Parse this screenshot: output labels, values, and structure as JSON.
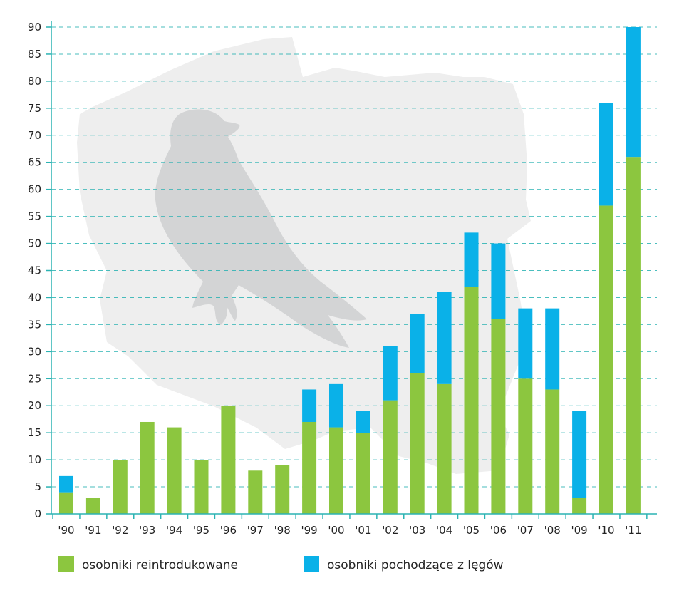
{
  "chart_data": {
    "type": "bar",
    "stacked": true,
    "title": "",
    "xlabel": "",
    "ylabel": "",
    "ylim": [
      0,
      90
    ],
    "yticks": [
      0,
      5,
      10,
      15,
      20,
      25,
      30,
      35,
      40,
      45,
      50,
      55,
      60,
      65,
      70,
      75,
      80,
      85,
      90
    ],
    "grid": true,
    "categories": [
      "'90",
      "'91",
      "'92",
      "'93",
      "'94",
      "'95",
      "'96",
      "'97",
      "'98",
      "'99",
      "'00",
      "'01",
      "'02",
      "'03",
      "'04",
      "'05",
      "'06",
      "'07",
      "'08",
      "'09",
      "'10",
      "'11"
    ],
    "series": [
      {
        "name": "osobniki reintrodukowane",
        "color": "#8cc63f",
        "values": [
          4,
          3,
          10,
          17,
          16,
          10,
          20,
          8,
          9,
          17,
          16,
          15,
          21,
          26,
          24,
          42,
          36,
          25,
          23,
          3,
          57,
          66
        ]
      },
      {
        "name": "osobniki pochodzące z lęgów",
        "color": "#0ab1e8",
        "values": [
          3,
          0,
          0,
          0,
          0,
          0,
          0,
          0,
          0,
          6,
          8,
          4,
          10,
          11,
          17,
          10,
          14,
          13,
          15,
          16,
          19,
          24
        ]
      }
    ],
    "legend_position": "bottom",
    "axis_color": "#2bb3b3",
    "grid_color": "#2bb3b3",
    "background_graphic": "poland-map-with-falcon-silhouette",
    "background_colors": {
      "map": "#eeeeee",
      "bird": "#d3d4d5"
    }
  }
}
